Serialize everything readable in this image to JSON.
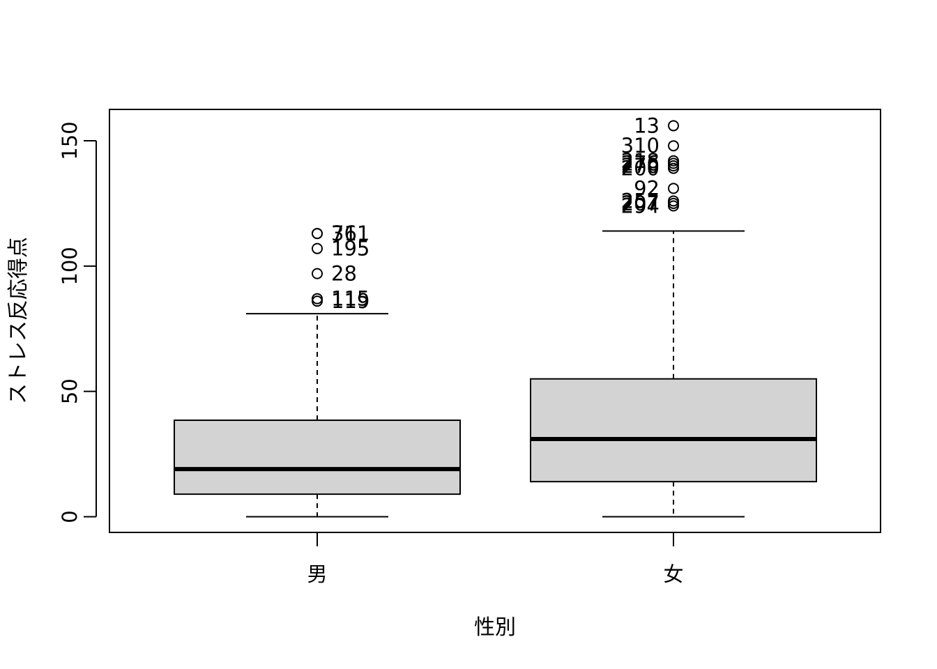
{
  "chart_data": {
    "type": "boxplot",
    "xlabel": "性別",
    "ylabel": "ストレス反応得点",
    "ylim": [
      -6,
      162
    ],
    "yticks": [
      0,
      50,
      100,
      150
    ],
    "grid": false,
    "colors": {
      "box_fill": "#d3d3d3",
      "stroke": "#000000"
    },
    "groups": [
      {
        "label": "男",
        "whisker_low": 0,
        "q1": 9,
        "median": 19,
        "q3": 38.5,
        "whisker_high": 81,
        "outliers": [
          {
            "value": 113,
            "label": "76"
          },
          {
            "value": 113,
            "label": "311"
          },
          {
            "value": 107,
            "label": "195"
          },
          {
            "value": 97,
            "label": "28"
          },
          {
            "value": 87,
            "label": "115"
          },
          {
            "value": 86,
            "label": "119"
          }
        ]
      },
      {
        "label": "女",
        "whisker_low": 0,
        "q1": 14,
        "median": 31,
        "q3": 55,
        "whisker_high": 114,
        "outliers": [
          {
            "value": 156,
            "label": "13"
          },
          {
            "value": 148,
            "label": "310"
          },
          {
            "value": 142,
            "label": "218"
          },
          {
            "value": 141,
            "label": "276"
          },
          {
            "value": 140,
            "label": "270"
          },
          {
            "value": 139,
            "label": "200"
          },
          {
            "value": 131,
            "label": "92"
          },
          {
            "value": 126,
            "label": "257"
          },
          {
            "value": 125,
            "label": "207"
          },
          {
            "value": 124,
            "label": "294"
          }
        ]
      }
    ]
  }
}
